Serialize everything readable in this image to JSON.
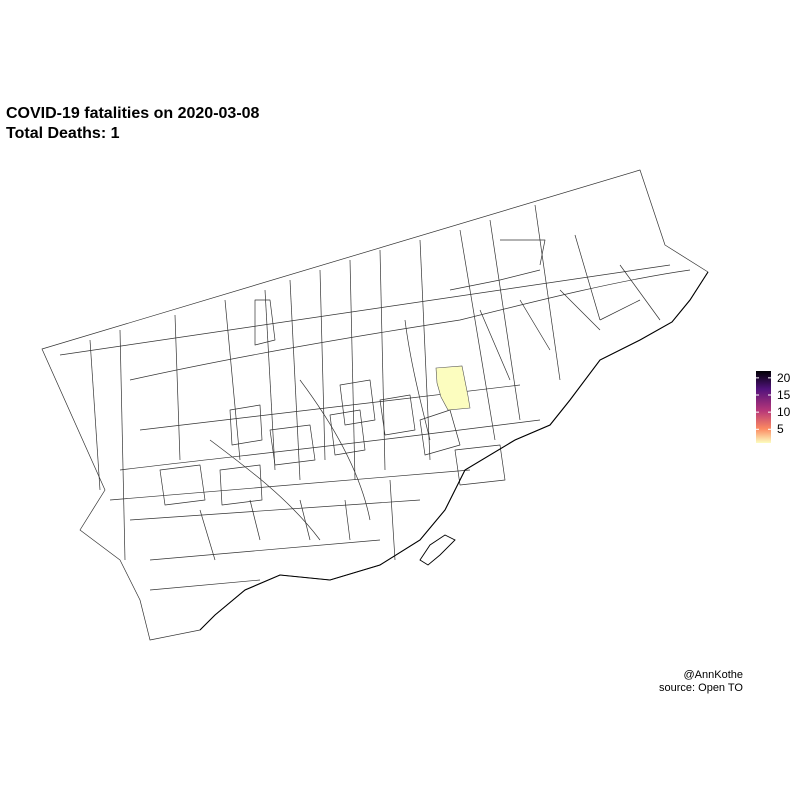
{
  "title": {
    "line1": "COVID-19 fatalities on 2020-03-08",
    "line2": "Total Deaths: 1"
  },
  "legend": {
    "ticks": [
      "20",
      "15",
      "10",
      "5"
    ],
    "tick_values": [
      20,
      15,
      10,
      5
    ],
    "range": [
      1,
      22
    ],
    "colors": {
      "high": "#000004",
      "mid_high": "#51127c",
      "mid": "#b73779",
      "mid_low": "#fc8961",
      "low": "#fcfdbf"
    }
  },
  "caption": {
    "line1": "@AnnKothe",
    "line2": "source: Open TO"
  },
  "map": {
    "highlight_color": "#fcfdbf",
    "highlighted_neighbourhood_deaths": 1
  }
}
